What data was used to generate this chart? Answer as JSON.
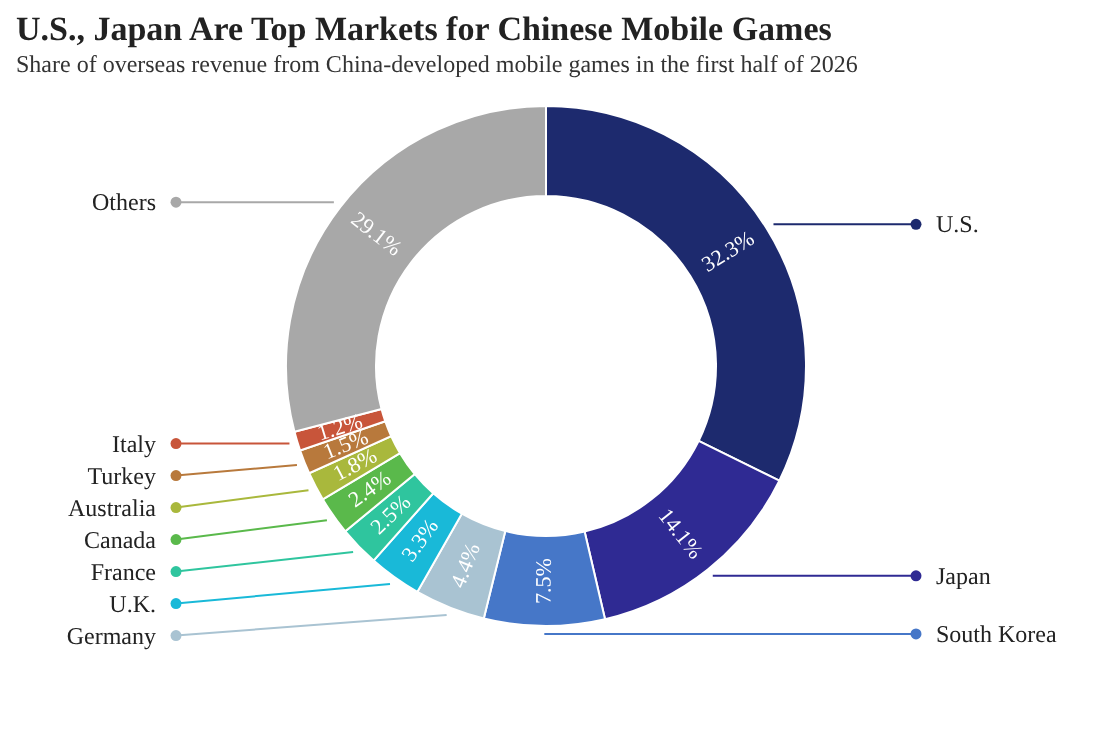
{
  "chart_data": {
    "type": "donut",
    "title": "U.S., Japan Are Top Markets for Chinese Mobile Games",
    "subtitle": "Share of overseas revenue from China-developed mobile games in the first half of 2026",
    "categories": [
      "U.S.",
      "Japan",
      "South Korea",
      "Germany",
      "U.K.",
      "France",
      "Canada",
      "Australia",
      "Turkey",
      "Italy",
      "Others"
    ],
    "values": [
      32.3,
      14.1,
      7.5,
      4.4,
      3.3,
      2.5,
      2.4,
      1.8,
      1.5,
      1.2,
      29.1
    ],
    "value_labels": [
      "32.3%",
      "14.1%",
      "7.5%",
      "4.4%",
      "3.3%",
      "2.5%",
      "2.4%",
      "1.8%",
      "1.5%",
      "1.2%",
      "29.1%"
    ],
    "legend": "left",
    "colors": [
      "#1d2a6e",
      "#2f2a93",
      "#4677c8",
      "#a9c3d2",
      "#19b9d8",
      "#2fc59e",
      "#5ab94b",
      "#a9b83c",
      "#b8793c",
      "#c8553a",
      "#a8a8a8"
    ]
  }
}
